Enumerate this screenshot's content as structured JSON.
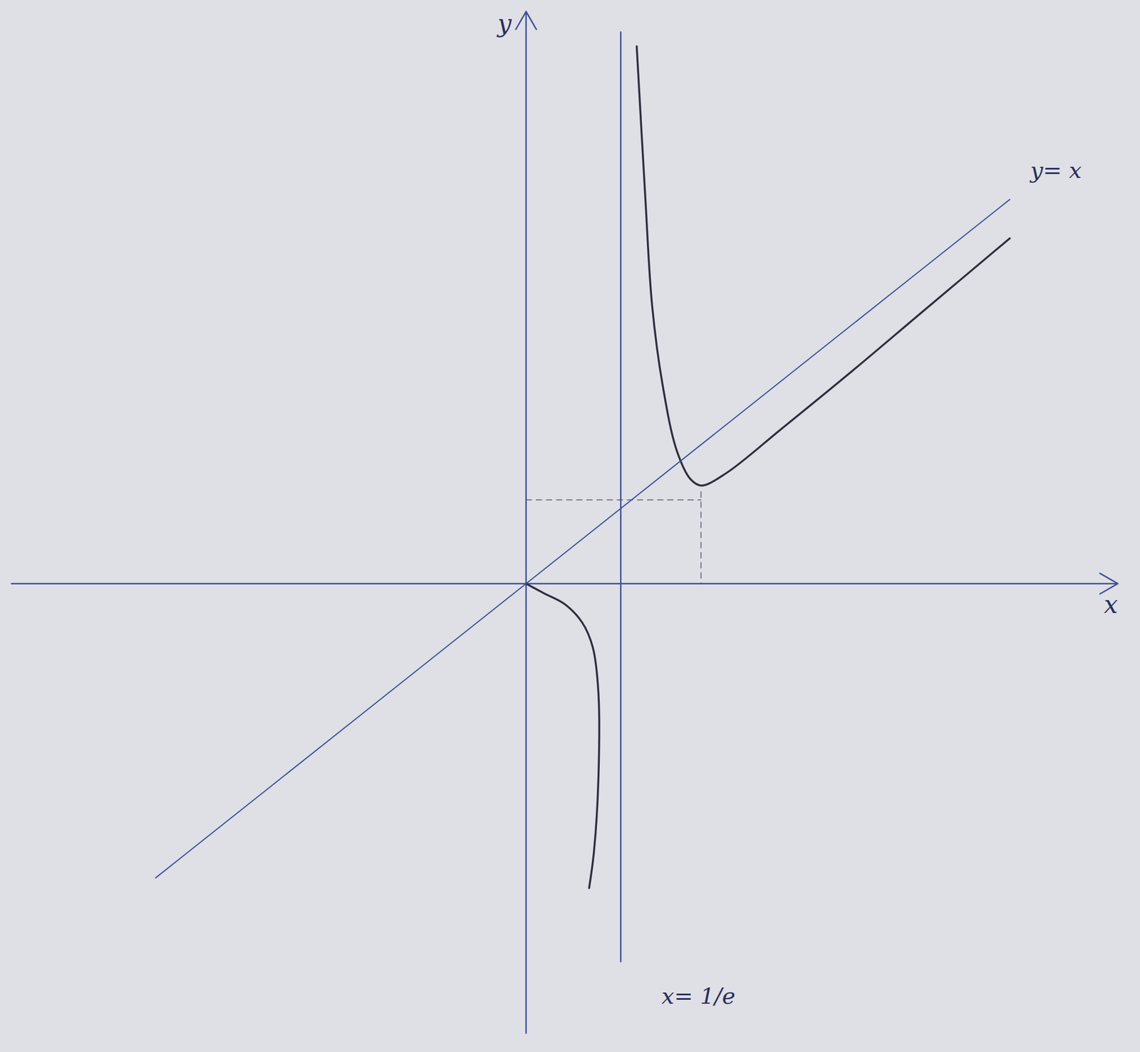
{
  "chart_data": {
    "type": "line",
    "x_label": "x",
    "y_label": "y",
    "xlim": [
      -2,
      2.3
    ],
    "ylim": [
      -2.2,
      2.8
    ],
    "tick_labels": false,
    "grid": false,
    "series": [
      {
        "x": [
          0.43,
          0.463,
          0.49,
          0.531,
          0.586,
          0.64,
          0.681,
          0.777,
          0.995,
          1.267,
          1.54,
          1.88
        ],
        "values": [
          2.63,
          1.9,
          1.36,
          0.97,
          0.65,
          0.51,
          0.48,
          0.54,
          0.76,
          1.04,
          1.33,
          1.69
        ],
        "color": "#2e2f3d",
        "line_style": "solid"
      },
      {
        "x": [
          0,
          0.068,
          0.15,
          0.218,
          0.259,
          0.281,
          0.281,
          0.264,
          0.245
        ],
        "values": [
          0,
          -0.046,
          -0.1,
          -0.19,
          -0.31,
          -0.53,
          -0.96,
          -1.31,
          -1.49
        ],
        "color": "#2e2f3d",
        "line_style": "solid"
      },
      {
        "x": [
          -1.44,
          1.88
        ],
        "values": [
          -1.44,
          1.88
        ],
        "color": "#3d4f96",
        "line_style": "solid"
      }
    ],
    "asymptote": {
      "x": 0.368,
      "y_range": [
        -1.85,
        2.7
      ],
      "label": "x= 1/e",
      "label_at": [
        0.67,
        -2.02
      ],
      "color": "#3d4f96"
    },
    "guides": [
      {
        "x": [
          0,
          0.68
        ],
        "values": [
          0.41,
          0.41
        ],
        "line_style": "dashed"
      },
      {
        "x": [
          0.68,
          0.68
        ],
        "values": [
          0.45,
          0
        ],
        "line_style": "dashed"
      }
    ],
    "annotations": [
      {
        "text": "y= x",
        "x": 1.96,
        "y": 2.02
      }
    ]
  }
}
